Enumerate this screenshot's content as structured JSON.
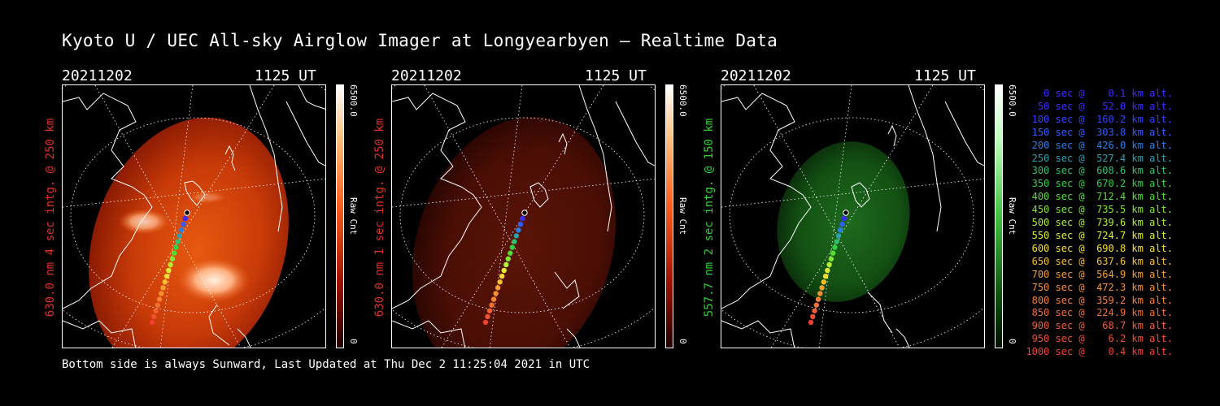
{
  "title": "Kyoto U / UEC All-sky Airglow Imager at Longyearbyen — Realtime Data",
  "footer": "Bottom side is always Sunward, Last Updated at Thu Dec  2 11:25:04 2021 in UTC",
  "panels": [
    {
      "date": "20211202",
      "time": "1125 UT",
      "ylabel": "630.0 nm 4 sec intg. @ 250 km",
      "label_color": "#e03020",
      "cbar_max": "6500.0",
      "cbar_min": "0",
      "cbar_label": "Raw Cnt",
      "cbar_color": "#ff8040",
      "image": "red-airglow-bright"
    },
    {
      "date": "20211202",
      "time": "1125 UT",
      "ylabel": "630.0 nm 1 sec intg. @ 250 km",
      "label_color": "#e03020",
      "cbar_max": "6500.0",
      "cbar_min": "0",
      "cbar_label": "Raw Cnt",
      "cbar_color": "#ff8040",
      "image": "red-airglow-dim"
    },
    {
      "date": "20211202",
      "time": "1125 UT",
      "ylabel": "557.7 nm 2 sec intg. @ 150 km",
      "label_color": "#30d030",
      "cbar_max": "6500.0",
      "cbar_min": "0",
      "cbar_label": "Raw Cnt",
      "cbar_color": "#80ff80",
      "image": "green-airglow"
    }
  ],
  "legend": [
    {
      "text": "   0 sec @    0.1 km alt.",
      "color": "#3a2cff"
    },
    {
      "text": "  50 sec @   52.0 km alt.",
      "color": "#3a2cff"
    },
    {
      "text": " 100 sec @  160.2 km alt.",
      "color": "#3344ff"
    },
    {
      "text": " 150 sec @  303.8 km alt.",
      "color": "#2e5cff"
    },
    {
      "text": " 200 sec @  426.0 km alt.",
      "color": "#2a80e8"
    },
    {
      "text": " 250 sec @  527.4 km alt.",
      "color": "#2aa0b0"
    },
    {
      "text": " 300 sec @  608.6 km alt.",
      "color": "#30c070"
    },
    {
      "text": " 350 sec @  670.2 km alt.",
      "color": "#30d040"
    },
    {
      "text": " 400 sec @  712.4 km alt.",
      "color": "#50e030"
    },
    {
      "text": " 450 sec @  735.5 km alt.",
      "color": "#80e830"
    },
    {
      "text": " 500 sec @  739.6 km alt.",
      "color": "#b0f030"
    },
    {
      "text": " 550 sec @  724.7 km alt.",
      "color": "#e0f030"
    },
    {
      "text": " 600 sec @  690.8 km alt.",
      "color": "#f8e030"
    },
    {
      "text": " 650 sec @  637.6 km alt.",
      "color": "#f8c030"
    },
    {
      "text": " 700 sec @  564.9 km alt.",
      "color": "#f8a030"
    },
    {
      "text": " 750 sec @  472.3 km alt.",
      "color": "#f89030"
    },
    {
      "text": " 800 sec @  359.2 km alt.",
      "color": "#f88030"
    },
    {
      "text": " 850 sec @  224.9 km alt.",
      "color": "#f07030"
    },
    {
      "text": " 900 sec @   68.7 km alt.",
      "color": "#f06030"
    },
    {
      "text": " 950 sec @    6.2 km alt.",
      "color": "#f05030"
    },
    {
      "text": "1000 sec @    0.4 km alt.",
      "color": "#f04030"
    }
  ],
  "track_colors": [
    "#000000",
    "#3a2cff",
    "#2e5cff",
    "#2a80e8",
    "#2aa0b0",
    "#30c070",
    "#30d040",
    "#50e030",
    "#80e830",
    "#b0f030",
    "#e0f030",
    "#f8e030",
    "#f8c030",
    "#f8a030",
    "#f89030",
    "#f88030",
    "#f07030",
    "#f06030",
    "#f05030",
    "#f04030"
  ]
}
